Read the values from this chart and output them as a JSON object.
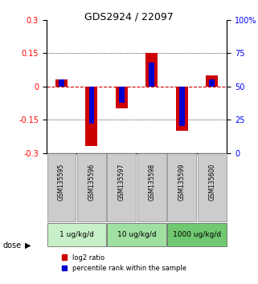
{
  "title": "GDS2924 / 22097",
  "samples": [
    "GSM135595",
    "GSM135596",
    "GSM135597",
    "GSM135598",
    "GSM135599",
    "GSM135600"
  ],
  "log2_ratios": [
    0.03,
    -0.27,
    -0.1,
    0.15,
    -0.2,
    0.05
  ],
  "percentile_ranks": [
    55,
    22,
    38,
    68,
    20,
    55
  ],
  "ylim_left": [
    -0.3,
    0.3
  ],
  "ylim_right": [
    0,
    100
  ],
  "yticks_left": [
    -0.3,
    -0.15,
    0,
    0.15,
    0.3
  ],
  "yticks_right": [
    0,
    25,
    50,
    75,
    100
  ],
  "ytick_labels_left": [
    "-0.3",
    "-0.15",
    "0",
    "0.15",
    "0.3"
  ],
  "ytick_labels_right": [
    "0",
    "25",
    "50",
    "75",
    "100%"
  ],
  "dose_groups": [
    {
      "label": "1 ug/kg/d",
      "samples": [
        "GSM135595",
        "GSM135596"
      ],
      "color": "#c8f0c8"
    },
    {
      "label": "10 ug/kg/d",
      "samples": [
        "GSM135597",
        "GSM135598"
      ],
      "color": "#a0e0a0"
    },
    {
      "label": "1000 ug/kg/d",
      "samples": [
        "GSM135599",
        "GSM135600"
      ],
      "color": "#70c870"
    }
  ],
  "bar_width": 0.4,
  "bar_color_log2": "#cc0000",
  "bar_color_pct": "#0000cc",
  "zero_line_color": "#cc0000",
  "grid_color": "#000000",
  "sample_box_color": "#cccccc",
  "legend_log2_label": "log2 ratio",
  "legend_pct_label": "percentile rank within the sample",
  "xlabel_dose": "dose"
}
